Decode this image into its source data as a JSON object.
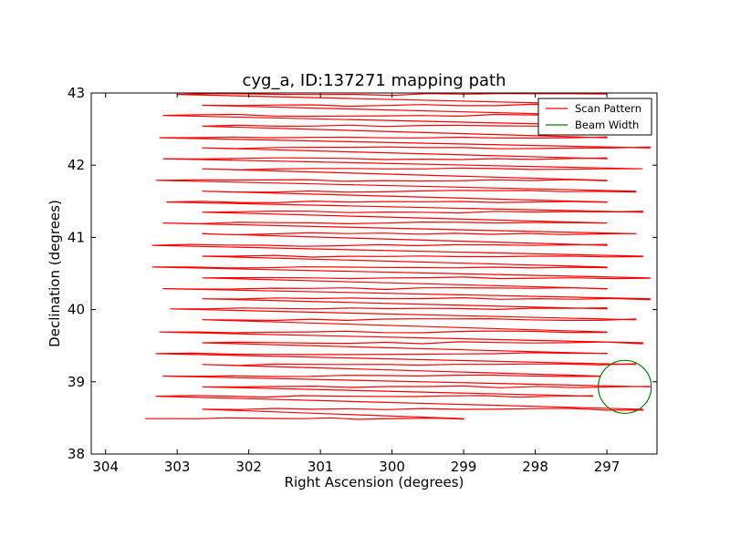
{
  "chart_data": {
    "type": "line",
    "title": "cyg_a, ID:137271 mapping path",
    "xlabel": "Right Ascension (degrees)",
    "ylabel": "Declination (degrees)",
    "xlim": [
      304.2,
      296.3
    ],
    "ylim": [
      38,
      43
    ],
    "x_ticks": [
      "304",
      "303",
      "302",
      "301",
      "300",
      "299",
      "298",
      "297"
    ],
    "y_ticks": [
      "38",
      "39",
      "40",
      "41",
      "42",
      "43"
    ],
    "legend": {
      "placement": "top-right",
      "entries": [
        "Scan Pattern",
        "Beam Width"
      ]
    },
    "colors": {
      "scan": "#ff0000",
      "beam": "#008000"
    },
    "series": [
      {
        "name": "Scan Pattern",
        "note_rows": "Serpentine raster: alternating left/right passes at these declinations",
        "rows": [
          {
            "dec": 38.49,
            "ra_start": 303.45,
            "ra_end": 299.0
          },
          {
            "dec": 38.62,
            "ra_start": 302.65,
            "ra_end": 296.5
          },
          {
            "dec": 38.8,
            "ra_start": 303.3,
            "ra_end": 297.2
          },
          {
            "dec": 38.93,
            "ra_start": 302.65,
            "ra_end": 296.4
          },
          {
            "dec": 39.08,
            "ra_start": 303.2,
            "ra_end": 297.1
          },
          {
            "dec": 39.24,
            "ra_start": 302.65,
            "ra_end": 296.6
          },
          {
            "dec": 39.39,
            "ra_start": 303.3,
            "ra_end": 297.0
          },
          {
            "dec": 39.54,
            "ra_start": 302.65,
            "ra_end": 296.5
          },
          {
            "dec": 39.69,
            "ra_start": 303.25,
            "ra_end": 297.0
          },
          {
            "dec": 39.86,
            "ra_start": 302.65,
            "ra_end": 296.6
          },
          {
            "dec": 40.01,
            "ra_start": 303.1,
            "ra_end": 297.0
          },
          {
            "dec": 40.15,
            "ra_start": 302.65,
            "ra_end": 296.4
          },
          {
            "dec": 40.29,
            "ra_start": 303.2,
            "ra_end": 297.0
          },
          {
            "dec": 40.44,
            "ra_start": 302.65,
            "ra_end": 296.4
          },
          {
            "dec": 40.59,
            "ra_start": 303.35,
            "ra_end": 297.0
          },
          {
            "dec": 40.74,
            "ra_start": 302.65,
            "ra_end": 296.5
          },
          {
            "dec": 40.89,
            "ra_start": 303.35,
            "ra_end": 297.0
          },
          {
            "dec": 41.05,
            "ra_start": 302.65,
            "ra_end": 296.6
          },
          {
            "dec": 41.2,
            "ra_start": 303.2,
            "ra_end": 297.0
          },
          {
            "dec": 41.35,
            "ra_start": 302.65,
            "ra_end": 296.5
          },
          {
            "dec": 41.49,
            "ra_start": 303.15,
            "ra_end": 297.0
          },
          {
            "dec": 41.64,
            "ra_start": 302.65,
            "ra_end": 296.6
          },
          {
            "dec": 41.79,
            "ra_start": 303.3,
            "ra_end": 297.0
          },
          {
            "dec": 41.95,
            "ra_start": 302.65,
            "ra_end": 296.5
          },
          {
            "dec": 42.09,
            "ra_start": 303.2,
            "ra_end": 297.0
          },
          {
            "dec": 42.24,
            "ra_start": 302.65,
            "ra_end": 296.4
          },
          {
            "dec": 42.38,
            "ra_start": 303.25,
            "ra_end": 297.0
          },
          {
            "dec": 42.54,
            "ra_start": 302.65,
            "ra_end": 296.5
          },
          {
            "dec": 42.69,
            "ra_start": 303.2,
            "ra_end": 297.0
          },
          {
            "dec": 42.83,
            "ra_start": 302.65,
            "ra_end": 296.5
          },
          {
            "dec": 42.98,
            "ra_start": 303.0,
            "ra_end": 297.0
          }
        ]
      },
      {
        "name": "Beam Width",
        "center_ra": 296.75,
        "center_dec": 38.93,
        "radius_deg": 0.37
      }
    ]
  }
}
